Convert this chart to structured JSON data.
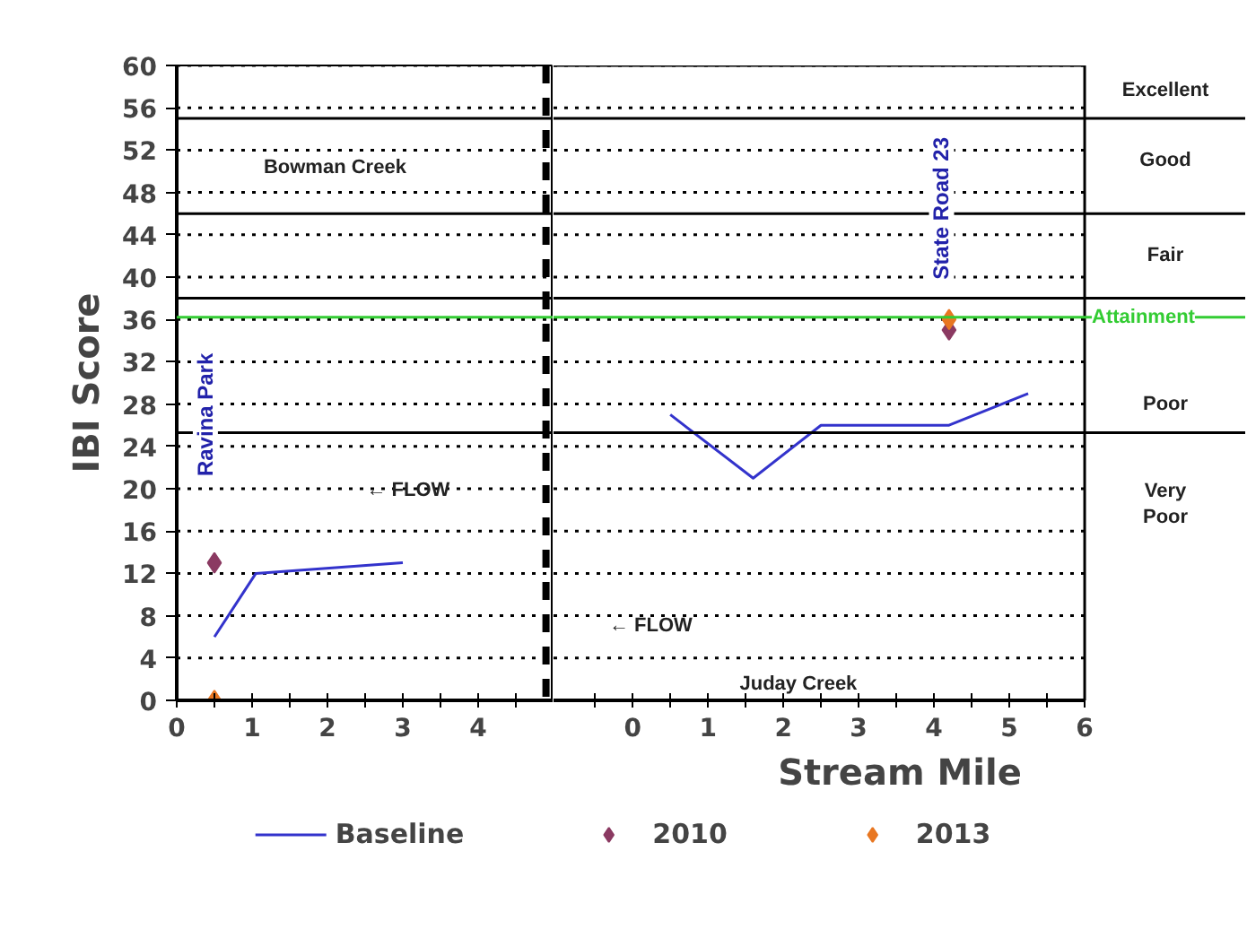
{
  "chart_data": [
    {
      "type": "line",
      "ylabel": "IBI Score",
      "xlim": [
        0,
        5
      ],
      "ylim": [
        0,
        60
      ],
      "xticks": [
        0,
        {
          "value": 0.5,
          "label": null
        },
        1,
        {
          "value": 1.5,
          "label": null
        },
        2,
        {
          "value": 2.5,
          "label": null
        },
        3,
        {
          "value": 3.5,
          "label": null
        },
        4,
        {
          "value": 4.5,
          "label": null
        }
      ],
      "yticks": [
        0,
        4,
        8,
        12,
        16,
        20,
        24,
        28,
        32,
        36,
        40,
        44,
        48,
        52,
        56,
        60
      ],
      "grid": "y",
      "legend": "bottom",
      "series": [
        {
          "name": "Baseline",
          "color": "#3333cc",
          "x": [
            0.5,
            1.05,
            3.0
          ],
          "values": [
            6,
            12,
            13
          ]
        },
        {
          "name": "2010",
          "type": "scatter",
          "color": "#8b3a62",
          "marker": "diamond",
          "x": [
            0.5
          ],
          "values": [
            13
          ]
        },
        {
          "name": "2013",
          "type": "scatter",
          "color": "#e87722",
          "marker": "diamond",
          "x": [
            0.5
          ],
          "values": [
            0
          ]
        }
      ],
      "ref_lines": [
        {
          "axis": "y",
          "value": 55,
          "label": null,
          "color": "#000000"
        },
        {
          "axis": "y",
          "value": 46,
          "label": null,
          "color": "#000000"
        },
        {
          "axis": "y",
          "value": 38,
          "label": null,
          "color": "#000000"
        },
        {
          "axis": "y",
          "value": 25.3,
          "label": null,
          "color": "#000000"
        },
        {
          "axis": "y",
          "value": 36.2,
          "label": null,
          "color": "#33cc33"
        },
        {
          "axis": "x",
          "value": 4.9,
          "label": null,
          "color": "#000000",
          "line_style": "dashed"
        }
      ],
      "annotations": [
        "Bowman Creek",
        "Ravina Park",
        "← FLOW"
      ]
    },
    {
      "type": "line",
      "xlabel": "Stream Mile",
      "xlim": [
        -1.05,
        6
      ],
      "ylim": [
        0,
        60
      ],
      "xticks": [
        {
          "value": -0.5,
          "label": null
        },
        0,
        {
          "value": 0.5,
          "label": null
        },
        1,
        {
          "value": 1.5,
          "label": null
        },
        2,
        {
          "value": 2.5,
          "label": null
        },
        3,
        {
          "value": 3.5,
          "label": null
        },
        4,
        {
          "value": 4.5,
          "label": null
        },
        5,
        {
          "value": 5.5,
          "label": null
        },
        6
      ],
      "yticks": [
        0,
        4,
        8,
        12,
        16,
        20,
        24,
        28,
        32,
        36,
        40,
        44,
        48,
        52,
        56,
        60
      ],
      "tick_labels": "x",
      "grid": "y",
      "series": [
        {
          "color": "#3333cc",
          "x": [
            0.5,
            1.6,
            2.5,
            4.2,
            5.25
          ],
          "values": [
            27,
            21,
            26,
            26,
            29
          ]
        },
        {
          "type": "scatter",
          "color": "#8b3a62",
          "marker": "diamond",
          "x": [
            4.2
          ],
          "values": [
            35
          ]
        },
        {
          "type": "scatter",
          "color": "#e87722",
          "marker": "diamond",
          "x": [
            4.2
          ],
          "values": [
            36
          ]
        }
      ],
      "ref_lines": [
        {
          "axis": "y",
          "value": 55,
          "label": null,
          "color": "#000000"
        },
        {
          "axis": "y",
          "value": 46,
          "label": null,
          "color": "#000000"
        },
        {
          "axis": "y",
          "value": 38,
          "label": null,
          "color": "#000000"
        },
        {
          "axis": "y",
          "value": 25.3,
          "label": null,
          "color": "#000000"
        },
        {
          "axis": "y",
          "value": 36.2,
          "label": "Attainment",
          "color": "#33cc33"
        }
      ],
      "annotations": [
        "Excellent",
        "Good",
        "Fair",
        "Poor",
        "Very\nPoor",
        "Juday Creek",
        "State Road 23",
        "← FLOW"
      ]
    }
  ]
}
